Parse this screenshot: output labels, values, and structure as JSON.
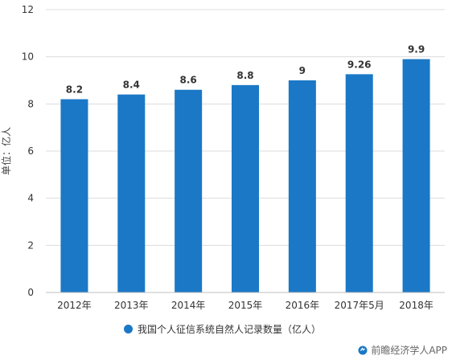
{
  "chart_data": {
    "type": "bar",
    "categories": [
      "2012年",
      "2013年",
      "2014年",
      "2015年",
      "2016年",
      "2017年5月",
      "2018年"
    ],
    "values": [
      8.2,
      8.4,
      8.6,
      8.8,
      9,
      9.26,
      9.9
    ],
    "data_labels": [
      "8.2",
      "8.4",
      "8.6",
      "8.8",
      "9",
      "9.26",
      "9.9"
    ],
    "ylabel": "单位：亿人",
    "ylim": [
      0,
      12
    ],
    "yticks": [
      "0",
      "2",
      "4",
      "6",
      "8",
      "10",
      "12"
    ],
    "grid": true,
    "legend": {
      "label": "我国个人征信系统自然人记录数量（亿人）",
      "placement": "bottom"
    },
    "bar_color": "#1b78c6"
  },
  "watermark": {
    "text": "前瞻经济学人APP",
    "icon": "qianzhan-logo-icon"
  }
}
